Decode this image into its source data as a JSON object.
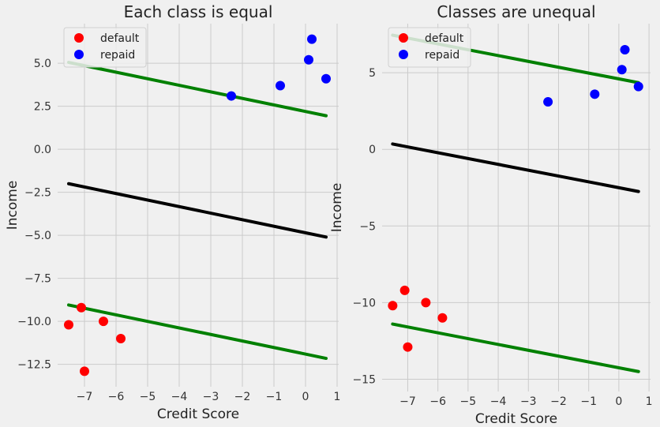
{
  "chart_data": [
    {
      "type": "scatter",
      "title": "Each class is equal",
      "xlabel": "Credit Score",
      "ylabel": "Income",
      "xlim": [
        -7.85,
        1.05
      ],
      "ylim": [
        -13.8,
        7.3
      ],
      "xticks": [
        -7,
        -6,
        -5,
        -4,
        -3,
        -2,
        -1,
        0,
        1
      ],
      "xtick_labels": [
        "−7",
        "−6",
        "−5",
        "−4",
        "−3",
        "−2",
        "−1",
        "0",
        "1"
      ],
      "yticks": [
        -12.5,
        -10.0,
        -7.5,
        -5.0,
        -2.5,
        0.0,
        2.5,
        5.0
      ],
      "ytick_labels": [
        "−12.5",
        "−10.0",
        "−7.5",
        "−5.0",
        "−2.5",
        "0.0",
        "2.5",
        "5.0"
      ],
      "grid": true,
      "legend_position": "top-left",
      "series": [
        {
          "name": "default",
          "kind": "points",
          "color": "#ff0000",
          "points": [
            [
              -7.5,
              -10.2
            ],
            [
              -7.1,
              -9.2
            ],
            [
              -7.0,
              -12.9
            ],
            [
              -6.4,
              -10.0
            ],
            [
              -5.85,
              -11.0
            ]
          ]
        },
        {
          "name": "repaid",
          "kind": "points",
          "color": "#0000ff",
          "points": [
            [
              -2.35,
              3.1
            ],
            [
              -0.8,
              3.7
            ],
            [
              0.1,
              5.2
            ],
            [
              0.2,
              6.4
            ],
            [
              0.65,
              4.1
            ]
          ]
        }
      ],
      "lines": [
        {
          "color": "#008000",
          "x": [
            -7.5,
            0.65
          ],
          "y": [
            5.05,
            1.95
          ]
        },
        {
          "color": "#000000",
          "x": [
            -7.5,
            0.65
          ],
          "y": [
            -2.0,
            -5.1
          ]
        },
        {
          "color": "#008000",
          "x": [
            -7.5,
            0.65
          ],
          "y": [
            -9.05,
            -12.15
          ]
        }
      ]
    },
    {
      "type": "scatter",
      "title": "Classes are unequal",
      "xlabel": "Credit Score",
      "ylabel": "Income",
      "xlim": [
        -7.85,
        1.05
      ],
      "ylim": [
        -15.8,
        8.2
      ],
      "xticks": [
        -7,
        -6,
        -5,
        -4,
        -3,
        -2,
        -1,
        0,
        1
      ],
      "xtick_labels": [
        "−7",
        "−6",
        "−5",
        "−4",
        "−3",
        "−2",
        "−1",
        "0",
        "1"
      ],
      "yticks": [
        -15,
        -10,
        -5,
        0,
        5
      ],
      "ytick_labels": [
        "−15",
        "−10",
        "−5",
        "0",
        "5"
      ],
      "grid": true,
      "legend_position": "top-left",
      "series": [
        {
          "name": "default",
          "kind": "points",
          "color": "#ff0000",
          "points": [
            [
              -7.5,
              -10.2
            ],
            [
              -7.1,
              -9.2
            ],
            [
              -7.0,
              -12.9
            ],
            [
              -6.4,
              -10.0
            ],
            [
              -5.85,
              -11.0
            ]
          ]
        },
        {
          "name": "repaid",
          "kind": "points",
          "color": "#0000ff",
          "points": [
            [
              -2.35,
              3.1
            ],
            [
              -0.8,
              3.6
            ],
            [
              0.1,
              5.2
            ],
            [
              0.2,
              6.5
            ],
            [
              0.65,
              4.1
            ]
          ]
        }
      ],
      "lines": [
        {
          "color": "#008000",
          "x": [
            -7.5,
            0.65
          ],
          "y": [
            7.45,
            4.35
          ]
        },
        {
          "color": "#000000",
          "x": [
            -7.5,
            0.65
          ],
          "y": [
            0.35,
            -2.75
          ]
        },
        {
          "color": "#008000",
          "x": [
            -7.5,
            0.65
          ],
          "y": [
            -11.4,
            -14.5
          ]
        }
      ]
    }
  ]
}
